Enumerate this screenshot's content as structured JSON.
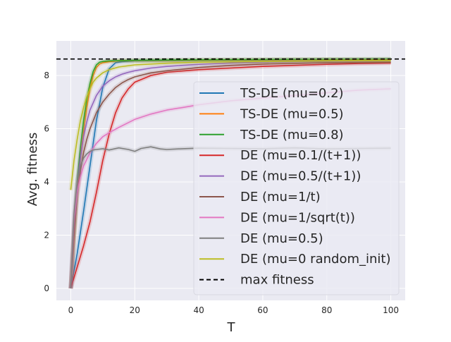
{
  "chart_data": {
    "type": "line",
    "title": "",
    "xlabel": "T",
    "ylabel": "Avg. fitness",
    "xlim": [
      -4.5,
      104.5
    ],
    "ylim": [
      -0.45,
      9.3
    ],
    "xticks": [
      0,
      20,
      40,
      60,
      80,
      100
    ],
    "yticks": [
      0,
      2,
      4,
      6,
      8
    ],
    "xtick_labels": [
      "0",
      "20",
      "40",
      "60",
      "80",
      "100"
    ],
    "ytick_labels": [
      "0",
      "2",
      "4",
      "6",
      "8"
    ],
    "grid": true,
    "legend_position": "center-right",
    "reference_line": {
      "name": "max fitness",
      "value": 8.62,
      "color": "#000000",
      "style": "dashed"
    },
    "series": [
      {
        "name": "TS-DE (mu=0.2)",
        "color": "#1f77b4",
        "x": [
          0,
          2,
          4,
          6,
          8,
          10,
          12,
          14,
          16,
          20,
          30,
          40,
          60,
          80,
          100
        ],
        "values": [
          0,
          1.3,
          2.9,
          4.6,
          6.3,
          7.55,
          8.25,
          8.48,
          8.52,
          8.55,
          8.56,
          8.57,
          8.58,
          8.59,
          8.6
        ]
      },
      {
        "name": "TS-DE (mu=0.5)",
        "color": "#ff7f0e",
        "x": [
          0,
          1,
          2,
          3,
          4,
          5,
          6,
          7,
          8,
          9,
          10,
          12,
          15,
          20,
          30,
          40,
          60,
          80,
          100
        ],
        "values": [
          0,
          1.8,
          3.6,
          4.9,
          5.9,
          6.8,
          7.5,
          8.0,
          8.3,
          8.43,
          8.48,
          8.52,
          8.55,
          8.56,
          8.57,
          8.58,
          8.59,
          8.6,
          8.6
        ]
      },
      {
        "name": "TS-DE (mu=0.8)",
        "color": "#2ca02c",
        "x": [
          0,
          1,
          2,
          3,
          4,
          5,
          6,
          7,
          8,
          9,
          10,
          12,
          15,
          20,
          30,
          40,
          60,
          80,
          100
        ],
        "values": [
          0,
          2.1,
          4.0,
          5.3,
          6.3,
          7.1,
          7.7,
          8.15,
          8.4,
          8.5,
          8.53,
          8.55,
          8.56,
          8.57,
          8.58,
          8.59,
          8.6,
          8.61,
          8.62
        ]
      },
      {
        "name": "DE (mu=0.1/(t+1))",
        "color": "#d62728",
        "x": [
          0,
          2,
          4,
          6,
          8,
          10,
          12,
          14,
          16,
          18,
          20,
          25,
          30,
          40,
          50,
          60,
          70,
          80,
          90,
          100
        ],
        "values": [
          0,
          0.8,
          1.6,
          2.5,
          3.6,
          4.8,
          5.8,
          6.6,
          7.15,
          7.5,
          7.75,
          8.0,
          8.12,
          8.22,
          8.28,
          8.34,
          8.38,
          8.42,
          8.45,
          8.47
        ]
      },
      {
        "name": "DE (mu=0.5/(t+1))",
        "color": "#9467bd",
        "x": [
          0,
          1,
          2,
          3,
          4,
          5,
          6,
          8,
          10,
          12,
          14,
          16,
          18,
          20,
          25,
          30,
          40,
          50,
          60,
          80,
          100
        ],
        "values": [
          0,
          2.2,
          3.9,
          4.9,
          5.7,
          6.25,
          6.7,
          7.25,
          7.6,
          7.8,
          7.95,
          8.05,
          8.12,
          8.18,
          8.28,
          8.34,
          8.42,
          8.47,
          8.5,
          8.53,
          8.55
        ]
      },
      {
        "name": "DE (mu=1/t)",
        "color": "#8c564b",
        "x": [
          0,
          1,
          2,
          3,
          4,
          5,
          6,
          8,
          10,
          12,
          14,
          16,
          18,
          20,
          25,
          30,
          40,
          50,
          60,
          80,
          100
        ],
        "values": [
          0,
          2.0,
          3.5,
          4.4,
          5.1,
          5.6,
          6.0,
          6.6,
          7.0,
          7.3,
          7.55,
          7.72,
          7.85,
          7.95,
          8.1,
          8.18,
          8.3,
          8.38,
          8.43,
          8.48,
          8.5
        ]
      },
      {
        "name": "DE (mu=1/sqrt(t))",
        "color": "#e377c2",
        "x": [
          0,
          1,
          2,
          3,
          4,
          6,
          8,
          10,
          12,
          15,
          20,
          25,
          30,
          35,
          40,
          50,
          60,
          70,
          80,
          90,
          100
        ],
        "values": [
          0,
          2.5,
          3.6,
          4.2,
          4.6,
          5.1,
          5.45,
          5.7,
          5.85,
          6.05,
          6.35,
          6.55,
          6.7,
          6.8,
          6.9,
          7.05,
          7.15,
          7.25,
          7.35,
          7.45,
          7.5
        ]
      },
      {
        "name": "DE (mu=0.5)",
        "color": "#7f7f7f",
        "x": [
          0,
          1,
          2,
          3,
          4,
          5,
          6,
          7,
          8,
          10,
          12,
          15,
          18,
          20,
          22,
          25,
          28,
          30,
          35,
          40,
          50,
          60,
          70,
          80,
          90,
          100
        ],
        "values": [
          0,
          2.8,
          4.0,
          4.6,
          4.9,
          5.05,
          5.15,
          5.2,
          5.22,
          5.25,
          5.2,
          5.28,
          5.22,
          5.15,
          5.26,
          5.32,
          5.24,
          5.22,
          5.25,
          5.27,
          5.26,
          5.25,
          5.28,
          5.24,
          5.26,
          5.27
        ]
      },
      {
        "name": "DE (mu=0 random_init)",
        "color": "#bcbd22",
        "x": [
          0,
          1,
          2,
          3,
          4,
          5,
          6,
          7,
          8,
          10,
          12,
          15,
          20,
          30,
          40,
          60,
          80,
          100
        ],
        "values": [
          3.7,
          4.8,
          5.6,
          6.3,
          6.8,
          7.2,
          7.5,
          7.75,
          7.9,
          8.1,
          8.22,
          8.32,
          8.4,
          8.46,
          8.5,
          8.53,
          8.55,
          8.56
        ]
      }
    ]
  }
}
